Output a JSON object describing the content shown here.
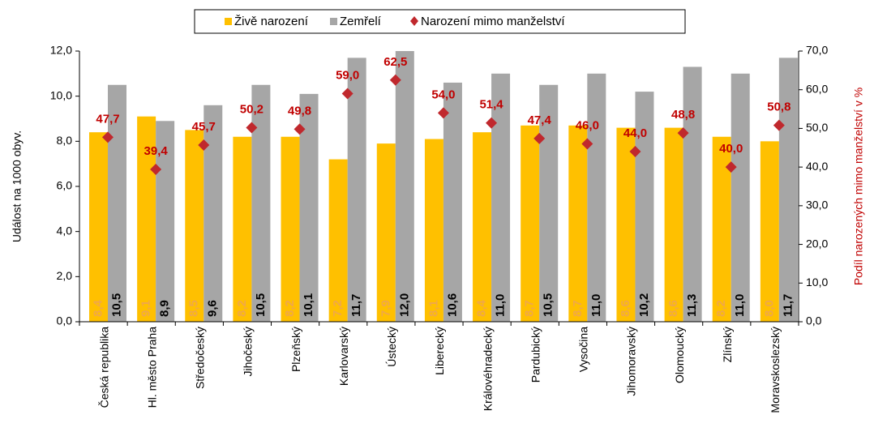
{
  "chart_data": {
    "type": "bar",
    "y_label": "Událost na 1000 obyv.",
    "y2_label": "Podíl narozených mimo manželství v %",
    "categories": [
      "Česká republika",
      "Hl. město Praha",
      "Středočeský",
      "Jihočeský",
      "Plzeňský",
      "Karlovarský",
      "Ústecký",
      "Liberecký",
      "Královéhradecký",
      "Pardubický",
      "Vysočina",
      "Jihomoravský",
      "Olomoucký",
      "Zlínský",
      "Moravskoslezský"
    ],
    "series": [
      {
        "name": "Živě narození",
        "color": "#ffc000",
        "label_color": "#f0a848",
        "values": [
          8.4,
          9.1,
          8.5,
          8.2,
          8.2,
          7.2,
          7.9,
          8.1,
          8.4,
          8.7,
          8.7,
          8.6,
          8.6,
          8.2,
          8.0
        ],
        "value_labels": [
          "8,4",
          "9,1",
          "8,5",
          "8,2",
          "8,2",
          "7,2",
          "7,9",
          "8,1",
          "8,4",
          "8,7",
          "8,7",
          "8,6",
          "8,6",
          "8,2",
          "8,0"
        ]
      },
      {
        "name": "Zemřelí",
        "color": "#a6a6a6",
        "label_color": "#000000",
        "values": [
          10.5,
          8.9,
          9.6,
          10.5,
          10.1,
          11.7,
          12.0,
          10.6,
          11.0,
          10.5,
          11.0,
          10.2,
          11.3,
          11.0,
          11.7
        ],
        "value_labels": [
          "10,5",
          "8,9",
          "9,6",
          "10,5",
          "10,1",
          "11,7",
          "12,0",
          "10,6",
          "11,0",
          "10,5",
          "11,0",
          "10,2",
          "11,3",
          "11,0",
          "11,7"
        ]
      },
      {
        "name": "Narození mimo manželství",
        "type": "scatter",
        "axis": "y2",
        "color": "#c0282d",
        "label_color": "#c00000",
        "values": [
          47.7,
          39.4,
          45.7,
          50.2,
          49.8,
          59.0,
          62.5,
          54.0,
          51.4,
          47.4,
          46.0,
          44.0,
          48.8,
          40.0,
          50.8
        ],
        "value_labels": [
          "47,7",
          "39,4",
          "45,7",
          "50,2",
          "49,8",
          "59,0",
          "62,5",
          "54,0",
          "51,4",
          "47,4",
          "46,0",
          "44,0",
          "48,8",
          "40,0",
          "50,8"
        ]
      }
    ],
    "ylim": [
      0,
      12
    ],
    "yticks": [
      {
        "value": 0,
        "label": "0,0"
      },
      {
        "value": 2,
        "label": "2,0"
      },
      {
        "value": 4,
        "label": "4,0"
      },
      {
        "value": 6,
        "label": "6,0"
      },
      {
        "value": 8,
        "label": "8,0"
      },
      {
        "value": 10,
        "label": "10,0"
      },
      {
        "value": 12,
        "label": "12,0"
      }
    ],
    "y2lim": [
      0,
      70
    ],
    "y2ticks": [
      {
        "value": 0,
        "label": "0,0"
      },
      {
        "value": 10,
        "label": "10,0"
      },
      {
        "value": 20,
        "label": "20,0"
      },
      {
        "value": 30,
        "label": "30,0"
      },
      {
        "value": 40,
        "label": "40,0"
      },
      {
        "value": 50,
        "label": "50,0"
      },
      {
        "value": 60,
        "label": "60,0"
      },
      {
        "value": 70,
        "label": "70,0"
      }
    ],
    "legend": "top"
  }
}
